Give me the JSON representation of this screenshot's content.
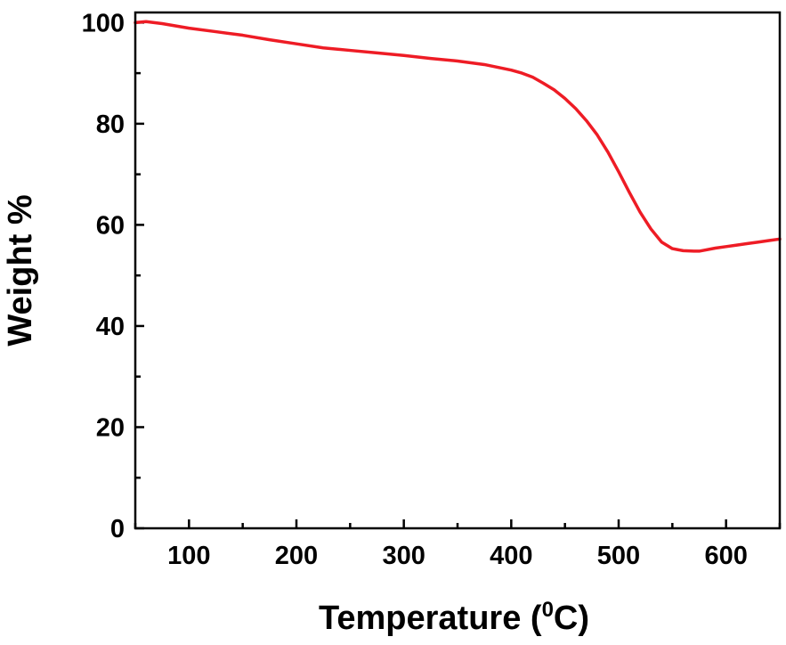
{
  "chart_data": {
    "type": "line",
    "title": "",
    "xlabel_prefix": "Temperature (",
    "xlabel_sup": "0",
    "xlabel_suffix": "C)",
    "ylabel": "Weight %",
    "xlim": [
      50,
      650
    ],
    "ylim": [
      0,
      102
    ],
    "xticks": [
      100,
      200,
      300,
      400,
      500,
      600
    ],
    "yticks": [
      0,
      20,
      40,
      60,
      80,
      100
    ],
    "grid": false,
    "legend": "none",
    "series": [
      {
        "color": "#ee1c25",
        "x": [
          50,
          60,
          75,
          100,
          125,
          150,
          175,
          200,
          225,
          250,
          275,
          300,
          325,
          350,
          375,
          400,
          410,
          420,
          430,
          440,
          450,
          460,
          470,
          480,
          490,
          500,
          510,
          520,
          530,
          540,
          550,
          560,
          570,
          575,
          580,
          590,
          600,
          610,
          620,
          630,
          640,
          650
        ],
        "y": [
          100.0,
          100.2,
          99.8,
          98.9,
          98.2,
          97.5,
          96.6,
          95.8,
          95.0,
          94.5,
          94.0,
          93.5,
          92.9,
          92.4,
          91.7,
          90.6,
          90.0,
          89.2,
          88.0,
          86.7,
          85.0,
          83.0,
          80.6,
          77.8,
          74.4,
          70.5,
          66.4,
          62.5,
          59.2,
          56.6,
          55.3,
          54.9,
          54.8,
          54.8,
          55.0,
          55.4,
          55.7,
          56.0,
          56.3,
          56.6,
          56.9,
          57.2
        ]
      }
    ]
  }
}
